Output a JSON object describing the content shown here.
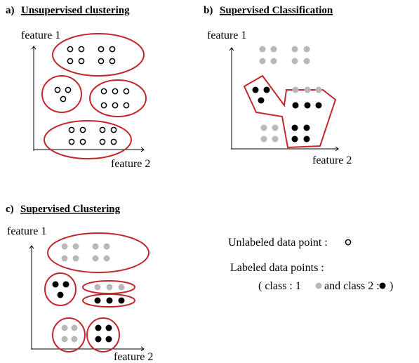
{
  "panels": [
    {
      "label": "a)",
      "title": "Unsupervised clustering",
      "y_axis": "feature 1",
      "x_axis": "feature 2"
    },
    {
      "label": "b)",
      "title": "Supervised Classification",
      "y_axis": "feature 1",
      "x_axis": "feature 2"
    },
    {
      "label": "c)",
      "title": "Supervised Clustering",
      "y_axis": "feature 1",
      "x_axis": "feature 2"
    }
  ],
  "legend": {
    "unlabeled": "Unlabeled data point :",
    "labeled": "Labeled data points :",
    "class1": "( class : 1",
    "class2": "and class 2 :",
    "close": ")"
  }
}
